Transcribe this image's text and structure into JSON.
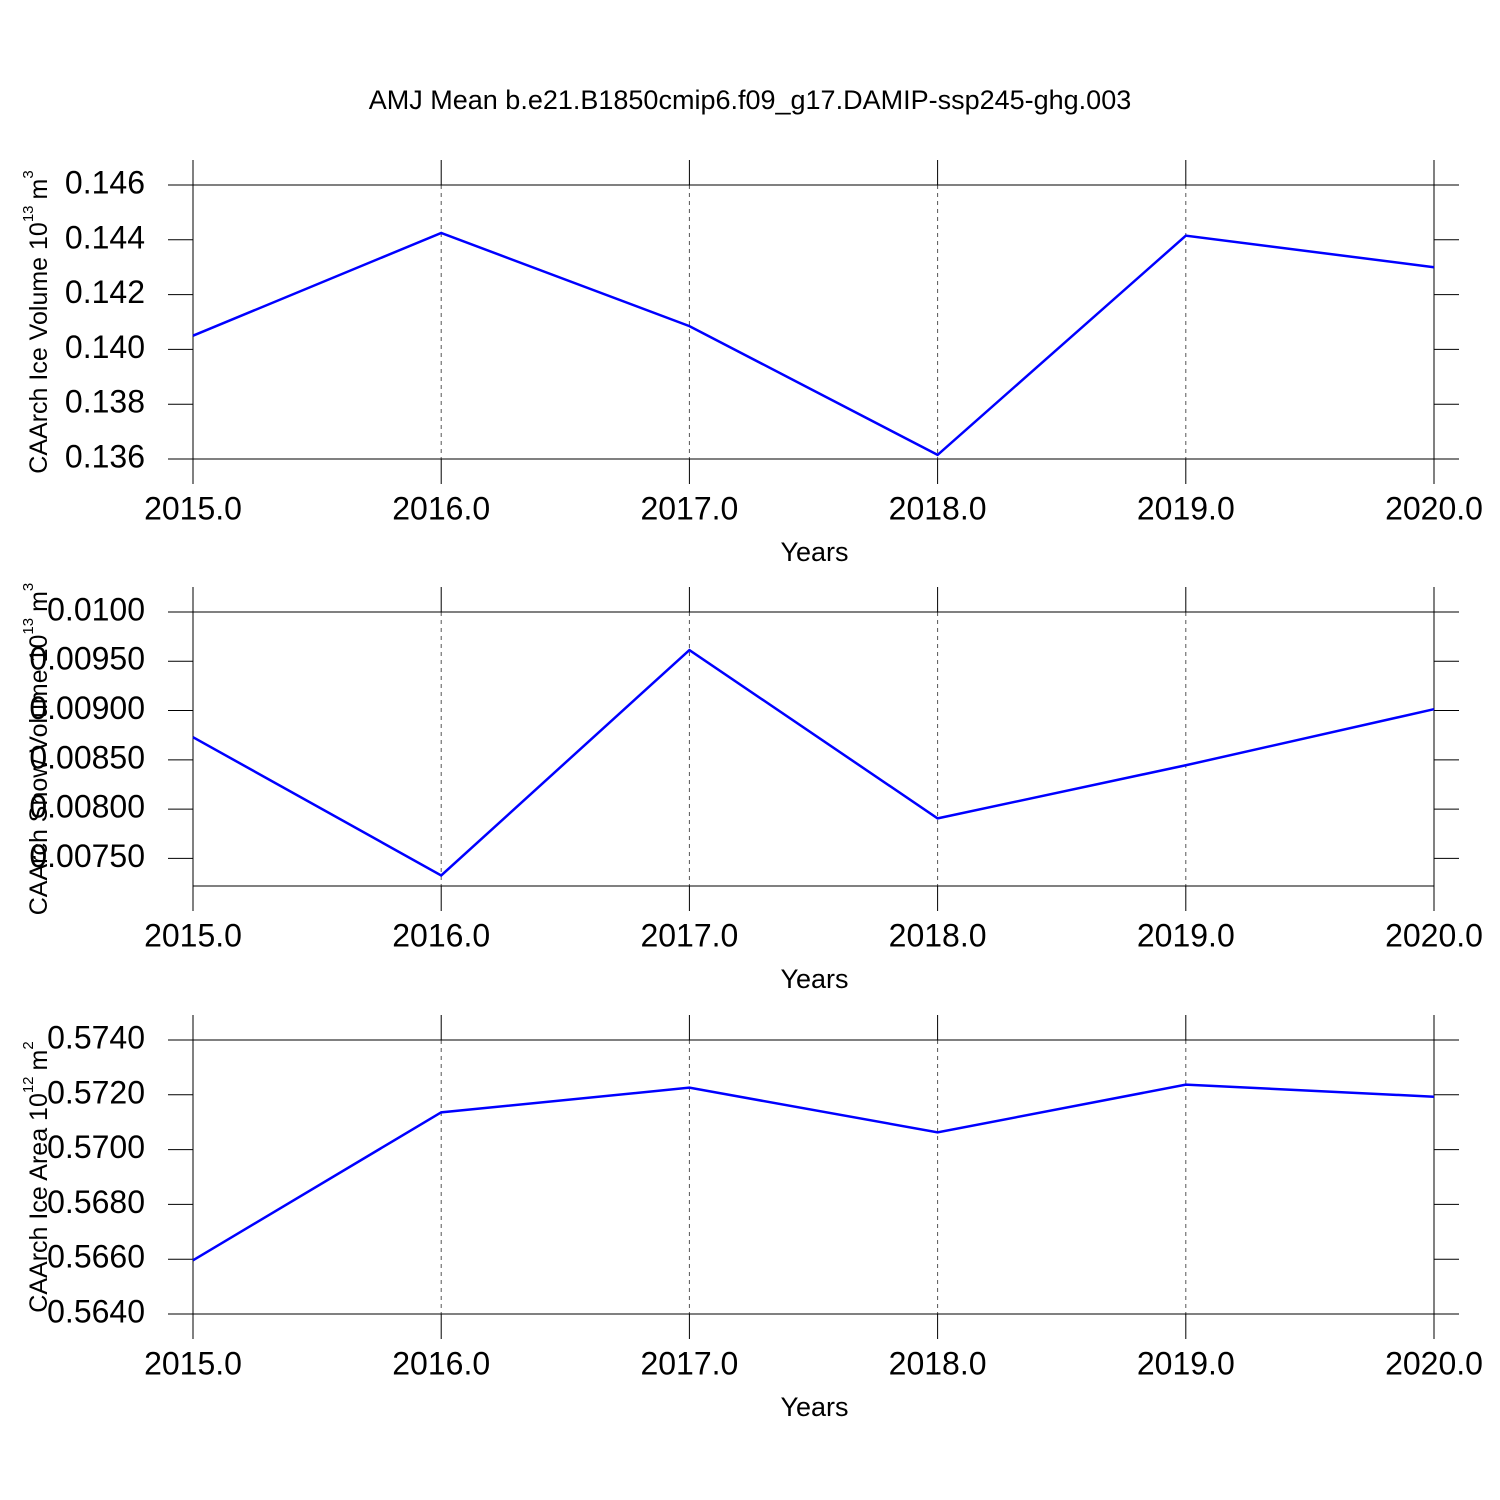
{
  "title": "AMJ Mean b.e21.B1850cmip6.f09_g17.DAMIP-ssp245-ghg.003",
  "chart_data": [
    {
      "type": "line",
      "xlabel": "Years",
      "ylabel": "CAArch Ice Volume 10",
      "ylabel_exp": "13",
      "ylabel_unit": "m",
      "ylabel_unit_exp": "3",
      "x": [
        2015,
        2016,
        2017,
        2018,
        2019,
        2020
      ],
      "series": [
        {
          "color": "#0000ff",
          "values": [
            0.1405,
            0.14425,
            0.14085,
            0.13615,
            0.14415,
            0.143
          ]
        }
      ],
      "xlim": [
        2015,
        2020
      ],
      "xticks": [
        {
          "value": 2015,
          "label": "2015.0"
        },
        {
          "value": 2016,
          "label": "2016.0"
        },
        {
          "value": 2017,
          "label": "2017.0"
        },
        {
          "value": 2018,
          "label": "2018.0"
        },
        {
          "value": 2019,
          "label": "2019.0"
        },
        {
          "value": 2020,
          "label": "2020.0"
        }
      ],
      "ylim": [
        0.136,
        0.146
      ],
      "yticks": [
        0.136,
        0.138,
        {
          "value": 0.14,
          "label": "0.140"
        },
        0.142,
        0.144,
        0.146
      ],
      "grid": true
    },
    {
      "type": "line",
      "xlabel": "Years",
      "ylabel": "CAArch Snow Volume 10",
      "ylabel_exp": "13",
      "ylabel_unit": "m",
      "ylabel_unit_exp": "3",
      "x": [
        2015,
        2016,
        2017,
        2018,
        2019,
        2020
      ],
      "series": [
        {
          "color": "#0000ff",
          "values": [
            0.00873,
            0.007327,
            0.009614,
            0.007906,
            0.008445,
            0.009014
          ]
        }
      ],
      "xlim": [
        2015,
        2020
      ],
      "xticks": [
        {
          "value": 2015,
          "label": "2015.0"
        },
        {
          "value": 2016,
          "label": "2016.0"
        },
        {
          "value": 2017,
          "label": "2017.0"
        },
        {
          "value": 2018,
          "label": "2018.0"
        },
        {
          "value": 2019,
          "label": "2019.0"
        },
        {
          "value": 2020,
          "label": "2020.0"
        }
      ],
      "ylim": [
        0.00722,
        0.01
      ],
      "yticks": [
        {
          "value": 0.0075,
          "label": "0.00750"
        },
        {
          "value": 0.008,
          "label": "0.00800"
        },
        {
          "value": 0.0085,
          "label": "0.00850"
        },
        {
          "value": 0.009,
          "label": "0.00900"
        },
        {
          "value": 0.0095,
          "label": "0.00950"
        },
        {
          "value": 0.01,
          "label": "0.0100"
        }
      ],
      "grid": true
    },
    {
      "type": "line",
      "xlabel": "Years",
      "ylabel": "CAArch Ice Area 10",
      "ylabel_exp": "12",
      "ylabel_unit": "m",
      "ylabel_unit_exp": "2",
      "x": [
        2015,
        2016,
        2017,
        2018,
        2019,
        2020
      ],
      "series": [
        {
          "color": "#0000ff",
          "values": [
            0.56596,
            0.57136,
            0.57226,
            0.57063,
            0.57237,
            0.57193
          ]
        }
      ],
      "xlim": [
        2015,
        2020
      ],
      "xticks": [
        {
          "value": 2015,
          "label": "2015.0"
        },
        {
          "value": 2016,
          "label": "2016.0"
        },
        {
          "value": 2017,
          "label": "2017.0"
        },
        {
          "value": 2018,
          "label": "2018.0"
        },
        {
          "value": 2019,
          "label": "2019.0"
        },
        {
          "value": 2020,
          "label": "2020.0"
        }
      ],
      "ylim": [
        0.564,
        0.574
      ],
      "yticks": [
        {
          "value": 0.564,
          "label": "0.5640"
        },
        {
          "value": 0.566,
          "label": "0.5660"
        },
        {
          "value": 0.568,
          "label": "0.5680"
        },
        {
          "value": 0.57,
          "label": "0.5700"
        },
        {
          "value": 0.572,
          "label": "0.5720"
        },
        {
          "value": 0.574,
          "label": "0.5740"
        }
      ],
      "grid": true
    }
  ]
}
